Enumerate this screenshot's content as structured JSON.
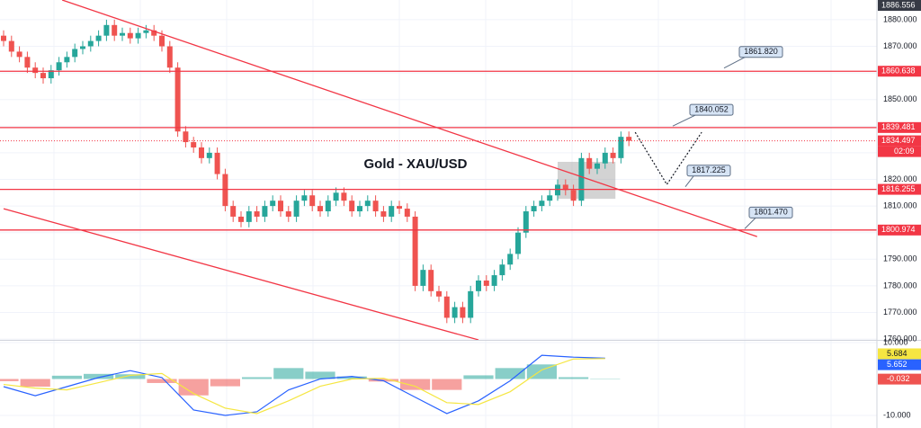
{
  "chart_data": {
    "type": "candlestick",
    "title": "Gold - XAU/USD",
    "ylim": [
      1759.7,
      1887.4
    ],
    "yticks": [
      {
        "value": 1880,
        "label": "1880.000"
      },
      {
        "value": 1870,
        "label": "1870.000"
      },
      {
        "value": 1860,
        "label": "1860.000"
      },
      {
        "value": 1850,
        "label": "1850.000"
      },
      {
        "value": 1840,
        "label": "1840.000"
      },
      {
        "value": 1830,
        "label": "1830.000"
      },
      {
        "value": 1820,
        "label": "1820.000"
      },
      {
        "value": 1810,
        "label": "1810.000"
      },
      {
        "value": 1800,
        "label": "1800.000"
      },
      {
        "value": 1790,
        "label": "1790.000"
      },
      {
        "value": 1780,
        "label": "1780.000"
      },
      {
        "value": 1770,
        "label": "1770.000"
      },
      {
        "value": 1760,
        "label": "1760.000"
      }
    ],
    "grid": true,
    "up_color": "#26a69a",
    "down_color": "#ef5350",
    "level_color": "#f23645",
    "open": [
      1874,
      1872,
      1868,
      1866,
      1862,
      1860,
      1858,
      1861,
      1864,
      1866,
      1869,
      1870,
      1872,
      1874,
      1878,
      1874,
      1875,
      1873,
      1875,
      1876,
      1874,
      1870,
      1862,
      1838,
      1834,
      1832,
      1828,
      1830,
      1822,
      1810,
      1806,
      1804,
      1808,
      1806,
      1810,
      1812,
      1808,
      1806,
      1812,
      1814,
      1810,
      1808,
      1812,
      1815,
      1812,
      1808,
      1810,
      1812,
      1808,
      1806,
      1810,
      1809,
      1806,
      1780,
      1786,
      1778,
      1776,
      1768,
      1772,
      1768,
      1778,
      1782,
      1780,
      1784,
      1788,
      1792,
      1800,
      1808,
      1810,
      1812,
      1814,
      1818,
      1816,
      1812,
      1828,
      1824,
      1826,
      1830,
      1828,
      1836
    ],
    "high": [
      1876,
      1874,
      1870,
      1868,
      1864,
      1862,
      1863,
      1866,
      1868,
      1871,
      1872,
      1874,
      1876,
      1880,
      1880,
      1877,
      1877,
      1877,
      1878,
      1878,
      1876,
      1872,
      1864,
      1840,
      1836,
      1834,
      1832,
      1832,
      1824,
      1812,
      1808,
      1810,
      1810,
      1812,
      1814,
      1814,
      1810,
      1814,
      1816,
      1816,
      1812,
      1814,
      1817,
      1817,
      1814,
      1812,
      1814,
      1814,
      1810,
      1812,
      1812,
      1811,
      1808,
      1788,
      1788,
      1780,
      1778,
      1774,
      1774,
      1780,
      1784,
      1784,
      1786,
      1790,
      1794,
      1802,
      1810,
      1812,
      1814,
      1816,
      1820,
      1820,
      1818,
      1830,
      1830,
      1828,
      1832,
      1832,
      1838,
      1838
    ],
    "low": [
      1870,
      1866,
      1864,
      1860,
      1858,
      1856,
      1856,
      1859,
      1862,
      1864,
      1867,
      1868,
      1870,
      1872,
      1872,
      1872,
      1871,
      1871,
      1873,
      1872,
      1868,
      1860,
      1836,
      1832,
      1830,
      1826,
      1826,
      1820,
      1808,
      1804,
      1802,
      1802,
      1804,
      1804,
      1808,
      1806,
      1804,
      1804,
      1810,
      1808,
      1806,
      1806,
      1810,
      1810,
      1806,
      1806,
      1808,
      1806,
      1804,
      1804,
      1807,
      1804,
      1778,
      1778,
      1776,
      1774,
      1766,
      1766,
      1766,
      1766,
      1776,
      1778,
      1778,
      1782,
      1786,
      1790,
      1798,
      1806,
      1808,
      1810,
      1812,
      1814,
      1810,
      1810,
      1822,
      1822,
      1824,
      1826,
      1826,
      1832.5
    ],
    "close": [
      1872,
      1868,
      1866,
      1862,
      1860,
      1858,
      1861,
      1864,
      1866,
      1869,
      1870,
      1872,
      1874,
      1878,
      1874,
      1875,
      1873,
      1875,
      1876,
      1874,
      1870,
      1862,
      1838,
      1834,
      1832,
      1828,
      1830,
      1822,
      1810,
      1806,
      1804,
      1808,
      1806,
      1810,
      1812,
      1808,
      1806,
      1812,
      1814,
      1810,
      1808,
      1812,
      1815,
      1812,
      1808,
      1810,
      1812,
      1808,
      1806,
      1810,
      1809,
      1806,
      1780,
      1786,
      1778,
      1776,
      1768,
      1772,
      1768,
      1778,
      1782,
      1780,
      1784,
      1788,
      1792,
      1800,
      1808,
      1810,
      1812,
      1814,
      1818,
      1816,
      1812,
      1828,
      1824,
      1826,
      1830,
      1828,
      1836,
      1834.5
    ],
    "levels": [
      {
        "value": 1860.638,
        "label": "1860.638"
      },
      {
        "value": 1839.481,
        "label": "1839.481"
      },
      {
        "value": 1816.255,
        "label": "1816.255"
      },
      {
        "value": 1800.974,
        "label": "1800.974"
      }
    ],
    "last_price": {
      "value": 1834.497,
      "label": "1834.497"
    },
    "countdown": "02:09",
    "crosshair": {
      "value": 1886.556,
      "label": "1886.556"
    },
    "callouts": [
      {
        "value": 1861.82,
        "label": "1861.820"
      },
      {
        "value": 1840.052,
        "label": "1840.052"
      },
      {
        "value": 1817.225,
        "label": "1817.225"
      },
      {
        "value": 1801.47,
        "label": "1801.470"
      }
    ],
    "trendlines": [
      {
        "x": [
          7.4,
          95.2
        ],
        "y": [
          1887.4,
          1798.5
        ]
      },
      {
        "x": [
          0,
          60
        ],
        "y": [
          1809.0,
          1759.7
        ]
      }
    ],
    "projection": {
      "x": [
        79.8,
        83.8,
        88.2
      ],
      "y": [
        1837.7,
        1818.1,
        1837.7
      ]
    },
    "zone": {
      "x": [
        70,
        77.3
      ],
      "y": [
        1812.7,
        1826.6
      ]
    },
    "macd": {
      "ylim": [
        -13.46,
        10.74
      ],
      "yticks": [
        {
          "value": 10,
          "label": "10.000"
        },
        {
          "value": -10,
          "label": "-10.000"
        }
      ],
      "x": [
        0,
        4,
        8,
        12,
        16,
        20,
        24,
        28,
        32,
        36,
        40,
        44,
        48,
        52,
        56,
        60,
        64,
        68,
        72,
        76
      ],
      "series": [
        {
          "name": "MACD",
          "color": "#2962ff",
          "values": [
            -2.1,
            -4.6,
            -2.1,
            0.4,
            2.3,
            0.4,
            -8.5,
            -10,
            -9,
            -3,
            0,
            0.7,
            -0.5,
            -5,
            -9.5,
            -6,
            -0.5,
            6.5,
            6,
            5.7
          ]
        },
        {
          "name": "Signal",
          "color": "#f5e642",
          "values": [
            -1.5,
            -2.5,
            -3,
            -1,
            1,
            1.5,
            -4,
            -8,
            -9.5,
            -6,
            -2,
            0,
            0.2,
            -2,
            -6.5,
            -7,
            -3.5,
            2.5,
            5.5,
            5.6
          ]
        }
      ],
      "histogram": [
        -0.6,
        -2.1,
        0.9,
        1.4,
        1.3,
        -1.1,
        -4.5,
        -2,
        0.5,
        3,
        2,
        0.7,
        -0.7,
        -3,
        -3,
        1,
        3,
        4,
        0.5,
        0.1
      ],
      "last_labels": [
        {
          "value": 5.684,
          "label": "5.684",
          "color": "#f5e642"
        },
        {
          "value": 5.652,
          "label": "5.652",
          "color": "#2962ff"
        },
        {
          "value": -0.032,
          "label": "-0.032",
          "color": "#ef5350"
        }
      ]
    }
  }
}
